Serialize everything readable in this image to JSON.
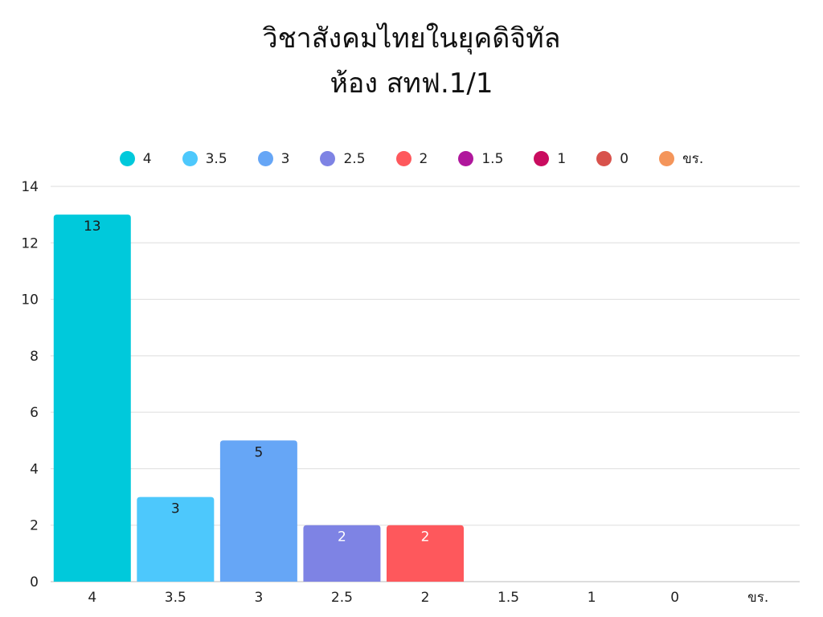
{
  "chart_data": {
    "type": "bar",
    "title": [
      "วิชาสังคมไทยในยุคดิจิทัล",
      "ห้อง สทฟ.1/1"
    ],
    "categories": [
      "4",
      "3.5",
      "3",
      "2.5",
      "2",
      "1.5",
      "1",
      "0",
      "ขร."
    ],
    "values": [
      13,
      3,
      5,
      2,
      2,
      0,
      0,
      0,
      0
    ],
    "colors": [
      "#00C9DB",
      "#4DC8FC",
      "#66A6F6",
      "#7E83E4",
      "#FE585C",
      "#B0179C",
      "#C90C5F",
      "#D8524C",
      "#F4955A"
    ],
    "ylim": [
      0,
      14
    ],
    "yticks": [
      0,
      2,
      4,
      6,
      8,
      10,
      12,
      14
    ],
    "grid": true,
    "legend": "top",
    "xlabel": "",
    "ylabel": ""
  }
}
